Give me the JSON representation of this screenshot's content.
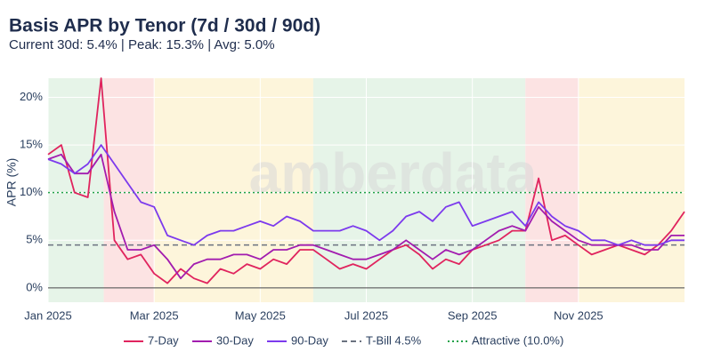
{
  "chart_data": {
    "type": "line",
    "title": "Basis APR by Tenor (7d / 30d / 90d)",
    "subtitle": "Current 30d: 5.4% | Peak: 15.3% | Avg: 5.0%",
    "y_label": "APR (%)",
    "watermark": "amberdata",
    "x": [
      0,
      0.25,
      0.5,
      0.75,
      1,
      1.25,
      1.5,
      1.75,
      2,
      2.25,
      2.5,
      2.75,
      3,
      3.25,
      3.5,
      3.75,
      4,
      4.25,
      4.5,
      4.75,
      5,
      5.25,
      5.5,
      5.75,
      6,
      6.25,
      6.5,
      6.75,
      7,
      7.25,
      7.5,
      7.75,
      8,
      8.25,
      8.5,
      8.75,
      9,
      9.25,
      9.5,
      9.75,
      10,
      10.25,
      10.5,
      10.75,
      11,
      11.25,
      11.5,
      11.75,
      12
    ],
    "xlim": [
      0,
      12
    ],
    "xticks": [
      {
        "value": 0,
        "label": "Jan 2025"
      },
      {
        "value": 2,
        "label": "Mar 2025"
      },
      {
        "value": 4,
        "label": "May 2025"
      },
      {
        "value": 6,
        "label": "Jul 2025"
      },
      {
        "value": 8,
        "label": "Sep 2025"
      },
      {
        "value": 10,
        "label": "Nov 2025"
      }
    ],
    "ylim": [
      -1.5,
      22
    ],
    "yticks": [
      {
        "value": 0,
        "label": "0%"
      },
      {
        "value": 5,
        "label": "5%"
      },
      {
        "value": 10,
        "label": "10%"
      },
      {
        "value": 15,
        "label": "15%"
      },
      {
        "value": 20,
        "label": "20%"
      }
    ],
    "grid": true,
    "legend": "bottom",
    "series": [
      {
        "name": "7-Day",
        "color": "#e0245e",
        "values": [
          14,
          15,
          10,
          9.5,
          22,
          5,
          3,
          3.5,
          1.5,
          0.5,
          2,
          1,
          0.5,
          2,
          1.5,
          2.5,
          2,
          3,
          2.5,
          4,
          4,
          3,
          2,
          2.5,
          2,
          3,
          4,
          4.5,
          3.5,
          2,
          3,
          2.5,
          4,
          4.5,
          5,
          6,
          6,
          11.5,
          5,
          5.5,
          4.5,
          3.5,
          4,
          4.5,
          4,
          3.5,
          4.5,
          6,
          8
        ]
      },
      {
        "name": "30-Day",
        "color": "#a21caf",
        "values": [
          13.5,
          14,
          12,
          12,
          14,
          8,
          4,
          4,
          4.5,
          3,
          1,
          2.5,
          3,
          3,
          3.5,
          3.5,
          3,
          4,
          4,
          4.5,
          4.5,
          4,
          3.5,
          3,
          3,
          3.5,
          4,
          5,
          4,
          3,
          4,
          3.5,
          4,
          5,
          6,
          6.5,
          6,
          8.5,
          7,
          6,
          5,
          4.5,
          4.5,
          4.5,
          4.5,
          4,
          4,
          5.5,
          5.5
        ]
      },
      {
        "name": "90-Day",
        "color": "#7c3aed",
        "values": [
          13.5,
          13,
          12,
          13,
          15,
          13,
          11,
          9,
          8.5,
          5.5,
          5,
          4.5,
          5.5,
          6,
          6,
          6.5,
          7,
          6.5,
          7.5,
          7,
          6,
          6,
          6,
          6.5,
          6,
          5,
          6,
          7.5,
          8,
          7,
          8.5,
          9,
          6.5,
          7,
          7.5,
          8,
          6.5,
          9,
          7.5,
          6.5,
          6,
          5,
          5,
          4.5,
          5,
          4.5,
          4.5,
          5,
          5
        ]
      }
    ],
    "reference_lines": [
      {
        "name": "T-Bill 4.5%",
        "value": 4.5,
        "color": "#6b7280",
        "dash": "6,4"
      },
      {
        "name": "Attractive (10.0%)",
        "value": 10.0,
        "color": "#22a34a",
        "dash": "2,3"
      }
    ],
    "shading": [
      {
        "from": 0,
        "to": 1.05,
        "color": "#e6f4e8"
      },
      {
        "from": 1.05,
        "to": 2.0,
        "color": "#fce3e3"
      },
      {
        "from": 2.0,
        "to": 5.0,
        "color": "#fdf5db"
      },
      {
        "from": 5.0,
        "to": 9.0,
        "color": "#e6f4e8"
      },
      {
        "from": 9.0,
        "to": 10.0,
        "color": "#fce3e3"
      },
      {
        "from": 10.0,
        "to": 12,
        "color": "#fdf5db"
      }
    ]
  }
}
